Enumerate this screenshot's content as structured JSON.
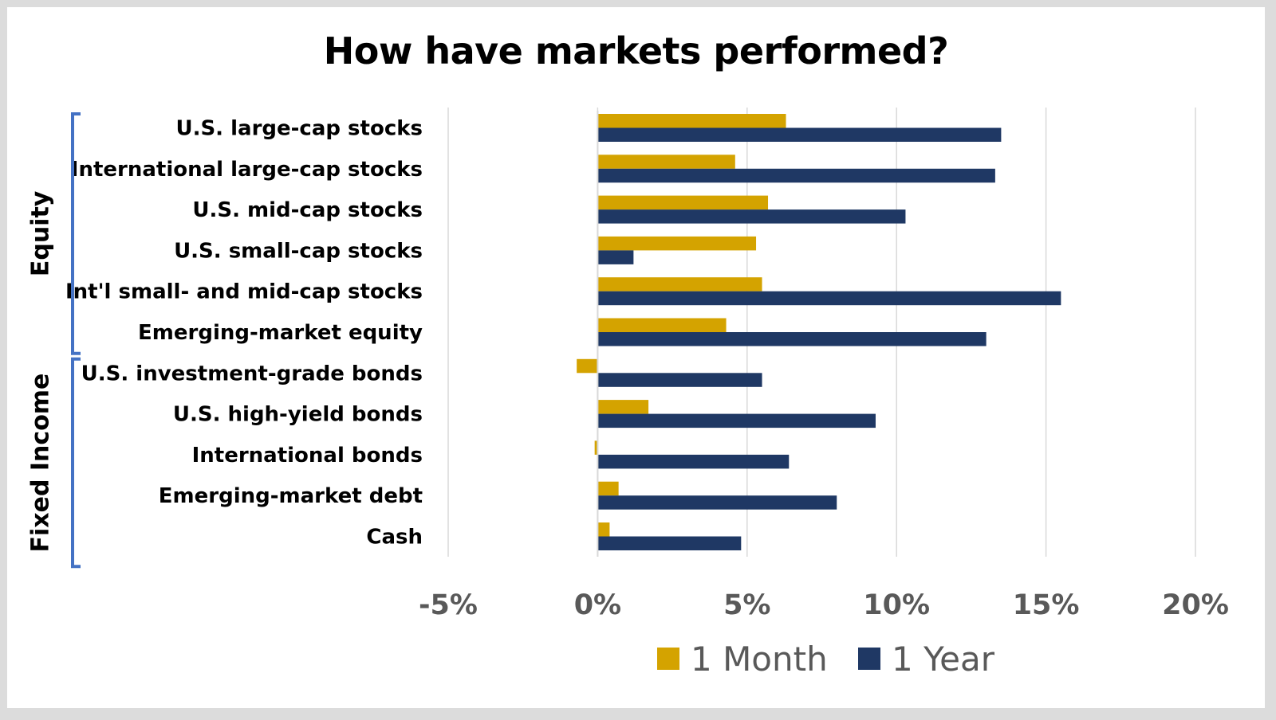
{
  "chart_data": {
    "type": "bar",
    "orientation": "horizontal",
    "title": "How have markets performed?",
    "categories": [
      "U.S. large-cap stocks",
      "International large-cap stocks",
      "U.S. mid-cap stocks",
      "U.S. small-cap stocks",
      "Int'l small- and mid-cap stocks",
      "Emerging-market equity",
      "U.S. investment-grade bonds",
      "U.S. high-yield bonds",
      "International bonds",
      "Emerging-market debt",
      "Cash"
    ],
    "groups": [
      {
        "label": "Equity",
        "categories": [
          "U.S. large-cap stocks",
          "International large-cap stocks",
          "U.S. mid-cap stocks",
          "U.S. small-cap stocks",
          "Int'l small- and mid-cap stocks",
          "Emerging-market equity"
        ]
      },
      {
        "label": "Fixed Income",
        "categories": [
          "U.S. investment-grade bonds",
          "U.S. high-yield bonds",
          "International bonds",
          "Emerging-market debt",
          "Cash"
        ]
      }
    ],
    "series": [
      {
        "name": "1 Month",
        "color": "#D4A300",
        "values": [
          6.3,
          4.6,
          5.7,
          5.3,
          5.5,
          4.3,
          -0.7,
          1.7,
          -0.1,
          0.7,
          0.4
        ]
      },
      {
        "name": "1 Year",
        "color": "#1F3864",
        "values": [
          13.5,
          13.3,
          10.3,
          1.2,
          15.5,
          13.0,
          5.5,
          9.3,
          6.4,
          8.0,
          4.8
        ]
      }
    ],
    "xlim": [
      -5,
      20
    ],
    "xticks": [
      -5,
      0,
      5,
      10,
      15,
      20
    ],
    "xtick_labels": [
      "-5%",
      "0%",
      "5%",
      "10%",
      "15%",
      "20%"
    ],
    "grid": true,
    "legend_position": "bottom",
    "bracket_color": "#4472C4"
  }
}
